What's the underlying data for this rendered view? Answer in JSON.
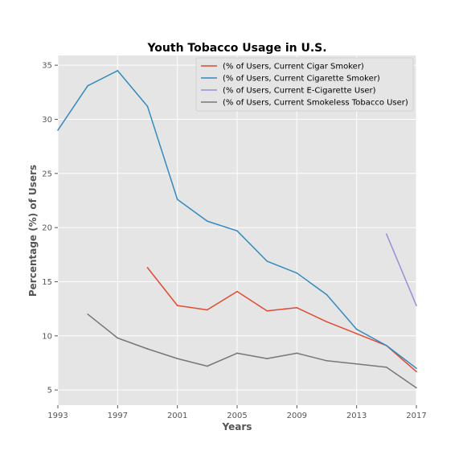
{
  "chart_data": {
    "type": "line",
    "title": "Youth Tobacco Usage in U.S.",
    "xlabel": "Years",
    "ylabel": "Percentage (%) of Users",
    "xlim": [
      1993,
      2017
    ],
    "ylim": [
      3.6,
      35.9
    ],
    "xticks": [
      1993,
      1997,
      2001,
      2005,
      2009,
      2013,
      2017
    ],
    "yticks": [
      5,
      10,
      15,
      20,
      25,
      30,
      35
    ],
    "grid": true,
    "legend_position": "top-right",
    "series": [
      {
        "name": "(% of Users, Current Cigar Smoker)",
        "color": "#e24a33",
        "x": [
          1999,
          2001,
          2003,
          2005,
          2007,
          2009,
          2011,
          2013,
          2015,
          2017
        ],
        "y": [
          16.3,
          12.8,
          12.4,
          14.1,
          12.3,
          12.6,
          11.3,
          10.2,
          9.1,
          6.7
        ]
      },
      {
        "name": "(% of Users, Current Cigarette Smoker)",
        "color": "#348abd",
        "x": [
          1993,
          1995,
          1997,
          1999,
          2001,
          2003,
          2005,
          2007,
          2009,
          2011,
          2013,
          2015,
          2017
        ],
        "y": [
          29.0,
          33.1,
          34.5,
          31.2,
          22.6,
          20.6,
          19.7,
          16.9,
          15.8,
          13.8,
          10.6,
          9.1,
          7.0
        ]
      },
      {
        "name": "(% of Users, Current E-Cigarette User)",
        "color": "#988ed5",
        "x": [
          2015,
          2017
        ],
        "y": [
          19.4,
          12.8
        ]
      },
      {
        "name": "(% of Users, Current Smokeless Tobacco User)",
        "color": "#777777",
        "x": [
          1995,
          1997,
          1999,
          2001,
          2003,
          2005,
          2007,
          2009,
          2011,
          2013,
          2015,
          2017
        ],
        "y": [
          12.0,
          9.8,
          8.8,
          7.9,
          7.2,
          8.4,
          7.9,
          8.4,
          7.7,
          7.4,
          7.1,
          5.2
        ]
      }
    ]
  }
}
